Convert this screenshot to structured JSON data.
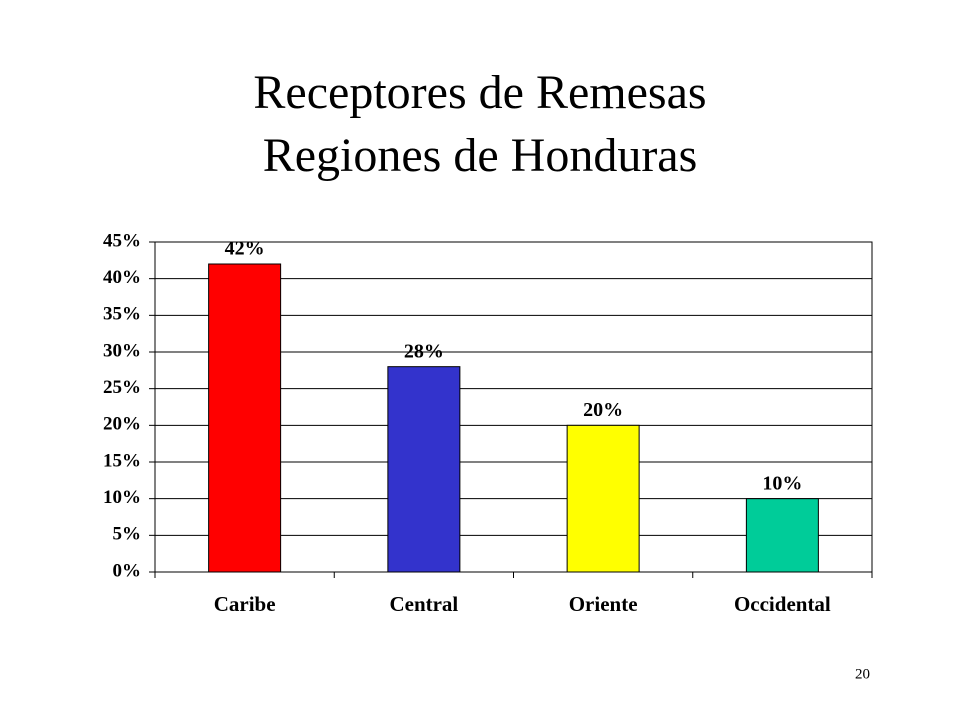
{
  "chart_data": {
    "type": "bar",
    "title": "Receptores de Remesas",
    "subtitle": "Regiones de Honduras",
    "categories": [
      "Caribe",
      "Central",
      "Oriente",
      "Occidental"
    ],
    "values": [
      42,
      28,
      20,
      10
    ],
    "value_labels": [
      "42%",
      "28%",
      "20%",
      "10%"
    ],
    "colors": [
      "#ff0000",
      "#3333cc",
      "#ffff00",
      "#00cc99"
    ],
    "ylim": [
      0,
      45
    ],
    "yticks": [
      {
        "value": 0,
        "label": "0%"
      },
      {
        "value": 5,
        "label": "5%"
      },
      {
        "value": 10,
        "label": "10%"
      },
      {
        "value": 15,
        "label": "15%"
      },
      {
        "value": 20,
        "label": "20%"
      },
      {
        "value": 25,
        "label": "25%"
      },
      {
        "value": 30,
        "label": "30%"
      },
      {
        "value": 35,
        "label": "35%"
      },
      {
        "value": 40,
        "label": "40%"
      },
      {
        "value": 45,
        "label": "45%"
      }
    ],
    "grid": true
  },
  "slide_number": "20"
}
